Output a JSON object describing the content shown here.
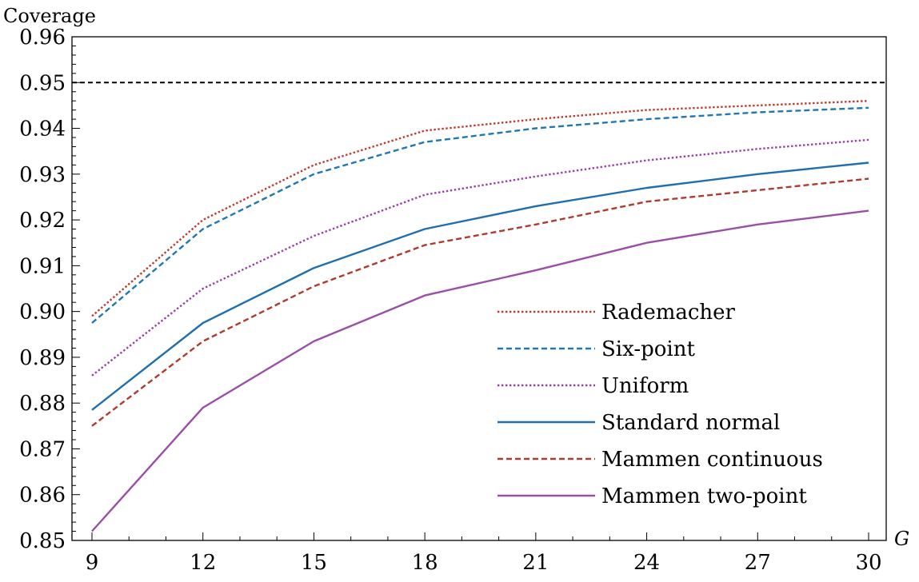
{
  "chart_data": {
    "type": "line",
    "ylabel": "Coverage",
    "xlabel": "G",
    "x": [
      9,
      12,
      15,
      18,
      21,
      24,
      27,
      30
    ],
    "xlim": [
      9,
      30
    ],
    "ylim": [
      0.85,
      0.96
    ],
    "x_ticks": [
      "9",
      "12",
      "15",
      "18",
      "21",
      "24",
      "27",
      "30"
    ],
    "y_ticks": [
      "0.85",
      "0.86",
      "0.87",
      "0.88",
      "0.89",
      "0.90",
      "0.91",
      "0.92",
      "0.93",
      "0.94",
      "0.95",
      "0.96"
    ],
    "reference_line": {
      "y": 0.95,
      "color": "#000000",
      "style": "dashed"
    },
    "grid": false,
    "legend_position": "lower-right",
    "series": [
      {
        "name": "Rademacher",
        "color": "#c0392b",
        "style": "dotted",
        "values": [
          0.899,
          0.92,
          0.932,
          0.9395,
          0.942,
          0.944,
          0.945,
          0.946
        ]
      },
      {
        "name": "Six-point",
        "color": "#1f77b4",
        "style": "dashed",
        "values": [
          0.8975,
          0.918,
          0.93,
          0.937,
          0.94,
          0.942,
          0.9435,
          0.9445
        ]
      },
      {
        "name": "Uniform",
        "color": "#9b3fa8",
        "style": "dotted",
        "values": [
          0.886,
          0.905,
          0.9165,
          0.9255,
          0.9295,
          0.933,
          0.9355,
          0.9375
        ]
      },
      {
        "name": "Standard normal",
        "color": "#1f6fb0",
        "style": "solid",
        "values": [
          0.8785,
          0.8975,
          0.9095,
          0.918,
          0.923,
          0.927,
          0.93,
          0.9325
        ]
      },
      {
        "name": "Mammen continuous",
        "color": "#b03a2e",
        "style": "dashed",
        "values": [
          0.875,
          0.8935,
          0.9055,
          0.9145,
          0.919,
          0.924,
          0.9265,
          0.929
        ]
      },
      {
        "name": "Mammen two-point",
        "color": "#9b4da8",
        "style": "solid",
        "values": [
          0.852,
          0.879,
          0.8935,
          0.9035,
          0.909,
          0.915,
          0.919,
          0.922
        ]
      }
    ]
  }
}
